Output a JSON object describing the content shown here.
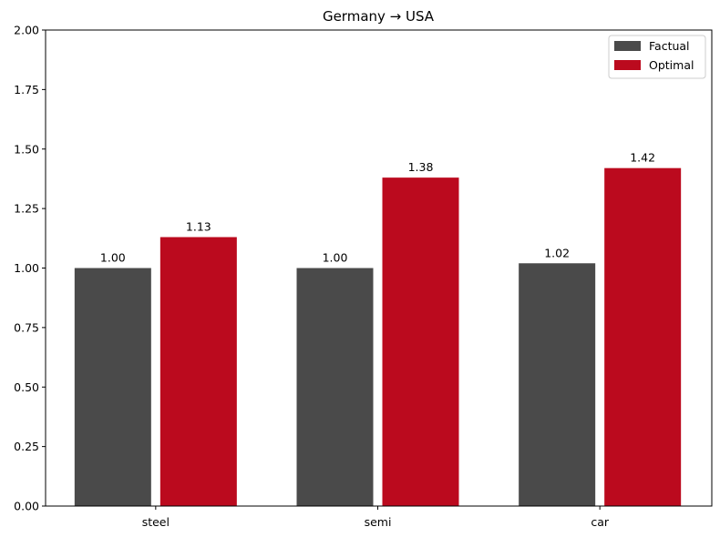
{
  "chart_data": {
    "type": "bar",
    "title": "Germany → USA",
    "xlabel": "",
    "ylabel": "",
    "categories": [
      "steel",
      "semi",
      "car"
    ],
    "series": [
      {
        "name": "Factual",
        "values": [
          1.0,
          1.0,
          1.02
        ],
        "labels": [
          "1.00",
          "1.00",
          "1.02"
        ],
        "color": "#4a4a4a"
      },
      {
        "name": "Optimal",
        "values": [
          1.13,
          1.38,
          1.42
        ],
        "labels": [
          "1.13",
          "1.38",
          "1.42"
        ],
        "color": "#bb0a1e"
      }
    ],
    "ylim": [
      0,
      2.0
    ],
    "yticks": [
      "0.00",
      "0.25",
      "0.50",
      "0.75",
      "1.00",
      "1.25",
      "1.50",
      "1.75",
      "2.00"
    ],
    "grid": false,
    "legend_position": "top-right"
  }
}
